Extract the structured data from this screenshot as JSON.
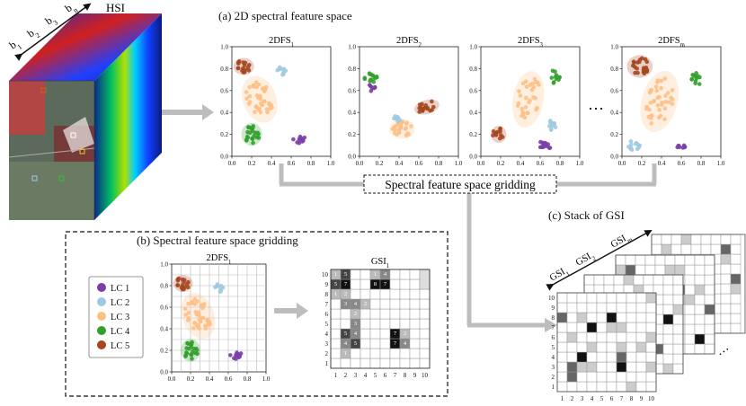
{
  "hsi": {
    "label": "HSI",
    "bands": [
      "b",
      "b",
      "b",
      "b"
    ],
    "band_subs": [
      "1",
      "2",
      "3",
      "n"
    ],
    "band_sep": ", ....,"
  },
  "section_a": {
    "title": "(a) 2D spectral feature space"
  },
  "section_b": {
    "title": "(b) Spectral feature space gridding"
  },
  "section_c": {
    "title": "(c) Stack of GSI"
  },
  "gridding_box": {
    "label": "Spectral feature space gridding"
  },
  "ellipsis": "…",
  "plots": [
    {
      "title": "2DFS",
      "sub": "1"
    },
    {
      "title": "2DFS",
      "sub": "2"
    },
    {
      "title": "2DFS",
      "sub": "3"
    },
    {
      "title": "2DFS",
      "sub": "m"
    }
  ],
  "plot_b": {
    "title": "2DFS",
    "sub": "1"
  },
  "gsi_b": {
    "title": "GSI",
    "sub": "1"
  },
  "stack_labels": [
    {
      "text": "GSI",
      "sub": "1"
    },
    {
      "text": "GSI",
      "sub": "2"
    },
    {
      "text": "GSI",
      "sub": "m"
    }
  ],
  "axis_ticks": [
    "0.0",
    "0.2",
    "0.4",
    "0.6",
    "0.8",
    "1.0"
  ],
  "grid_ticks": [
    "1",
    "2",
    "3",
    "4",
    "5",
    "6",
    "7",
    "8",
    "9",
    "10"
  ],
  "legend": [
    {
      "label": "LC 1",
      "color": "#7a3ea6"
    },
    {
      "label": "LC 2",
      "color": "#9ecae1"
    },
    {
      "label": "LC 3",
      "color": "#fdc086"
    },
    {
      "label": "LC 4",
      "color": "#33a02c"
    },
    {
      "label": "LC 5",
      "color": "#a6461f"
    }
  ],
  "gsi_numbers": [
    {
      "col": 1,
      "row": 10,
      "value": "1"
    },
    {
      "col": 2,
      "row": 10,
      "value": "5"
    },
    {
      "col": 5,
      "row": 10,
      "value": "1"
    },
    {
      "col": 6,
      "row": 10,
      "value": "4"
    },
    {
      "col": 1,
      "row": 9,
      "value": "5"
    },
    {
      "col": 2,
      "row": 9,
      "value": "7"
    },
    {
      "col": 5,
      "row": 9,
      "value": "8"
    },
    {
      "col": 6,
      "row": 9,
      "value": "7"
    },
    {
      "col": 1,
      "row": 8,
      "value": "1"
    },
    {
      "col": 2,
      "row": 8,
      "value": "2"
    },
    {
      "col": 2,
      "row": 7,
      "value": "3"
    },
    {
      "col": 3,
      "row": 7,
      "value": "4"
    },
    {
      "col": 4,
      "row": 7,
      "value": "2"
    },
    {
      "col": 3,
      "row": 6,
      "value": "2"
    },
    {
      "col": 3,
      "row": 5,
      "value": "3"
    },
    {
      "col": 2,
      "row": 4,
      "value": "5"
    },
    {
      "col": 3,
      "row": 4,
      "value": "4"
    },
    {
      "col": 7,
      "row": 4,
      "value": "7"
    },
    {
      "col": 8,
      "row": 4,
      "value": "2"
    },
    {
      "col": 2,
      "row": 3,
      "value": "4"
    },
    {
      "col": 3,
      "row": 3,
      "value": "5"
    },
    {
      "col": 7,
      "row": 3,
      "value": "7"
    },
    {
      "col": 8,
      "row": 3,
      "value": "4"
    },
    {
      "col": 2,
      "row": 2,
      "value": "1"
    }
  ]
}
